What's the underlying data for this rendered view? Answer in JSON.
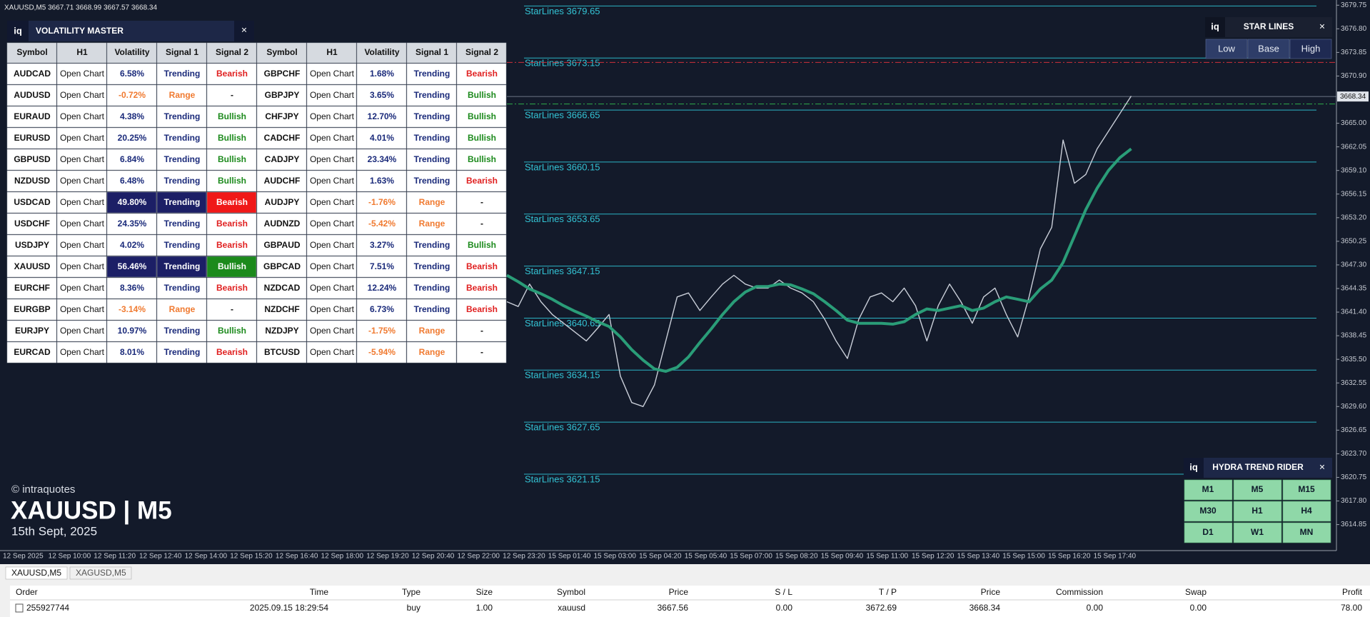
{
  "window_title": "XAUUSD,M5 3667.71 3668.99 3667.57 3668.34",
  "volatility_master": {
    "logo": "iq",
    "title": "VOLATILITY MASTER",
    "close": "×",
    "columns": [
      "Symbol",
      "H1",
      "Volatility",
      "Signal 1",
      "Signal 2",
      "Symbol",
      "H1",
      "Volatility",
      "Signal 1",
      "Signal 2"
    ],
    "rows": [
      [
        "AUDCAD",
        "Open Chart",
        "6.58%",
        "Trending",
        "Bearish",
        "GBPCHF",
        "Open Chart",
        "1.68%",
        "Trending",
        "Bearish"
      ],
      [
        "AUDUSD",
        "Open Chart",
        "-0.72%",
        "Range",
        "-",
        "GBPJPY",
        "Open Chart",
        "3.65%",
        "Trending",
        "Bullish"
      ],
      [
        "EURAUD",
        "Open Chart",
        "4.38%",
        "Trending",
        "Bullish",
        "CHFJPY",
        "Open Chart",
        "12.70%",
        "Trending",
        "Bullish"
      ],
      [
        "EURUSD",
        "Open Chart",
        "20.25%",
        "Trending",
        "Bullish",
        "CADCHF",
        "Open Chart",
        "4.01%",
        "Trending",
        "Bullish"
      ],
      [
        "GBPUSD",
        "Open Chart",
        "6.84%",
        "Trending",
        "Bullish",
        "CADJPY",
        "Open Chart",
        "23.34%",
        "Trending",
        "Bullish"
      ],
      [
        "NZDUSD",
        "Open Chart",
        "6.48%",
        "Trending",
        "Bullish",
        "AUDCHF",
        "Open Chart",
        "1.63%",
        "Trending",
        "Bearish"
      ],
      [
        "USDCAD",
        "Open Chart",
        "49.80%",
        "Trending",
        "Bearish",
        "AUDJPY",
        "Open Chart",
        "-1.76%",
        "Range",
        "-"
      ],
      [
        "USDCHF",
        "Open Chart",
        "24.35%",
        "Trending",
        "Bearish",
        "AUDNZD",
        "Open Chart",
        "-5.42%",
        "Range",
        "-"
      ],
      [
        "USDJPY",
        "Open Chart",
        "4.02%",
        "Trending",
        "Bearish",
        "GBPAUD",
        "Open Chart",
        "3.27%",
        "Trending",
        "Bullish"
      ],
      [
        "XAUUSD",
        "Open Chart",
        "56.46%",
        "Trending",
        "Bullish",
        "GBPCAD",
        "Open Chart",
        "7.51%",
        "Trending",
        "Bearish"
      ],
      [
        "EURCHF",
        "Open Chart",
        "8.36%",
        "Trending",
        "Bearish",
        "NZDCAD",
        "Open Chart",
        "12.24%",
        "Trending",
        "Bearish"
      ],
      [
        "EURGBP",
        "Open Chart",
        "-3.14%",
        "Range",
        "-",
        "NZDCHF",
        "Open Chart",
        "6.73%",
        "Trending",
        "Bearish"
      ],
      [
        "EURJPY",
        "Open Chart",
        "10.97%",
        "Trending",
        "Bullish",
        "NZDJPY",
        "Open Chart",
        "-1.75%",
        "Range",
        "-"
      ],
      [
        "EURCAD",
        "Open Chart",
        "8.01%",
        "Trending",
        "Bearish",
        "BTCUSD",
        "Open Chart",
        "-5.94%",
        "Range",
        "-"
      ]
    ],
    "highlighted_rows": [
      6,
      9
    ]
  },
  "star_lines_panel": {
    "logo": "iq",
    "title": "STAR LINES",
    "close": "×",
    "buttons": [
      "Low",
      "Base",
      "High"
    ],
    "active": 2
  },
  "hydra_panel": {
    "logo": "iq",
    "title": "HYDRA TREND RIDER",
    "close": "×",
    "buttons": [
      "M1",
      "M5",
      "M15",
      "M30",
      "H1",
      "H4",
      "D1",
      "W1",
      "MN"
    ]
  },
  "watermark": {
    "brand": "© intraquotes",
    "symbol": "XAUUSD | M5",
    "date": "15th Sept, 2025"
  },
  "chart_data": {
    "type": "line",
    "x_labels": [
      "12 Sep 2025",
      "12 Sep 10:00",
      "12 Sep 11:20",
      "12 Sep 12:40",
      "12 Sep 14:00",
      "12 Sep 15:20",
      "12 Sep 16:40",
      "12 Sep 18:00",
      "12 Sep 19:20",
      "12 Sep 20:40",
      "12 Sep 22:00",
      "12 Sep 23:20",
      "15 Sep 01:40",
      "15 Sep 03:00",
      "15 Sep 04:20",
      "15 Sep 05:40",
      "15 Sep 07:00",
      "15 Sep 08:20",
      "15 Sep 09:40",
      "15 Sep 11:00",
      "15 Sep 12:20",
      "15 Sep 13:40",
      "15 Sep 15:00",
      "15 Sep 16:20",
      "15 Sep 17:40"
    ],
    "series": [
      {
        "color": "#c9ced8",
        "values": [
          3642.7,
          3642.1,
          3644.9,
          3642.7,
          3641.1,
          3640.0,
          3638.9,
          3637.8,
          3639.4,
          3641.1,
          3633.4,
          3630.1,
          3629.6,
          3632.3,
          3637.8,
          3643.3,
          3643.8,
          3641.6,
          3643.3,
          3644.9,
          3646.0,
          3644.9,
          3644.4,
          3644.4,
          3645.4,
          3644.4,
          3643.8,
          3642.7,
          3640.5,
          3637.8,
          3635.6,
          3640.5,
          3643.3,
          3643.8,
          3642.7,
          3644.4,
          3642.2,
          3637.8,
          3642.2,
          3644.9,
          3642.7,
          3640.0,
          3643.3,
          3644.4,
          3641.1,
          3638.3,
          3643.3,
          3649.3,
          3652.0,
          3662.9,
          3657.5,
          3658.6,
          3661.8,
          3664.0,
          3666.2,
          3668.4
        ]
      },
      {
        "color": "#2a9d78",
        "values": [
          3646.0,
          3645.2,
          3644.3,
          3643.7,
          3643.0,
          3642.2,
          3641.5,
          3640.9,
          3640.2,
          3639.6,
          3638.3,
          3636.7,
          3635.4,
          3634.3,
          3634.0,
          3634.5,
          3635.8,
          3637.6,
          3639.3,
          3641.1,
          3642.7,
          3643.9,
          3644.6,
          3644.6,
          3644.9,
          3644.8,
          3644.3,
          3643.7,
          3642.7,
          3641.6,
          3640.4,
          3640.0,
          3640.0,
          3640.0,
          3639.9,
          3640.2,
          3641.1,
          3641.8,
          3641.6,
          3641.9,
          3642.2,
          3641.6,
          3641.9,
          3642.7,
          3643.3,
          3643.0,
          3642.7,
          3644.3,
          3645.4,
          3647.6,
          3650.9,
          3654.2,
          3656.9,
          3659.1,
          3660.7,
          3661.8
        ]
      }
    ],
    "ylim": [
      3611.6,
      3680.4
    ],
    "yticks": [
      3679.75,
      {
        "value": 3676.8,
        "label": "3676.80"
      },
      3673.85,
      {
        "value": 3670.9,
        "label": "3670.90"
      },
      {
        "value": 3665.0,
        "label": "3665.00"
      },
      3662.05,
      {
        "value": 3659.1,
        "label": "3659.10"
      },
      3656.15,
      {
        "value": 3653.2,
        "label": "3653.20"
      },
      3650.25,
      {
        "value": 3647.3,
        "label": "3647.30"
      },
      3644.35,
      {
        "value": 3641.4,
        "label": "3641.40"
      },
      3638.45,
      {
        "value": 3635.5,
        "label": "3635.50"
      },
      3632.55,
      {
        "value": 3629.6,
        "label": "3629.60"
      },
      3626.65,
      {
        "value": 3623.7,
        "label": "3623.70"
      },
      3620.75,
      {
        "value": 3617.8,
        "label": "3617.80"
      },
      3614.85
    ],
    "star_lines": [
      {
        "value": 3679.65,
        "label": "StarLines 3679.65"
      },
      {
        "value": 3673.15,
        "label": "StarLines 3673.15"
      },
      {
        "value": 3666.65,
        "label": "StarLines 3666.65"
      },
      {
        "value": 3660.15,
        "label": "StarLines 3660.15"
      },
      {
        "value": 3653.65,
        "label": "StarLines 3653.65"
      },
      {
        "value": 3647.15,
        "label": "StarLines 3647.15"
      },
      {
        "value": 3640.65,
        "label": "StarLines 3640.65"
      },
      {
        "value": 3634.15,
        "label": "StarLines 3634.15"
      },
      {
        "value": 3627.65,
        "label": "StarLines 3627.65"
      },
      {
        "value": 3621.15,
        "label": "StarLines 3621.15"
      }
    ],
    "red_level": 3672.6,
    "green_level": 3667.4,
    "current_price": {
      "value": 3668.34,
      "label": "3668.34"
    }
  },
  "tabs": [
    "XAUUSD,M5",
    "XAGUSD,M5"
  ],
  "active_tab": 0,
  "trade_table": {
    "columns": [
      "Order",
      "Time",
      "Type",
      "Size",
      "Symbol",
      "Price",
      "S / L",
      "T / P",
      "Price",
      "Commission",
      "Swap",
      "Profit"
    ],
    "rows": [
      [
        "255927744",
        "2025.09.15 18:29:54",
        "buy",
        "1.00",
        "xauusd",
        "3667.56",
        "0.00",
        "3672.69",
        "3668.34",
        "0.00",
        "0.00",
        "78.00"
      ]
    ]
  }
}
